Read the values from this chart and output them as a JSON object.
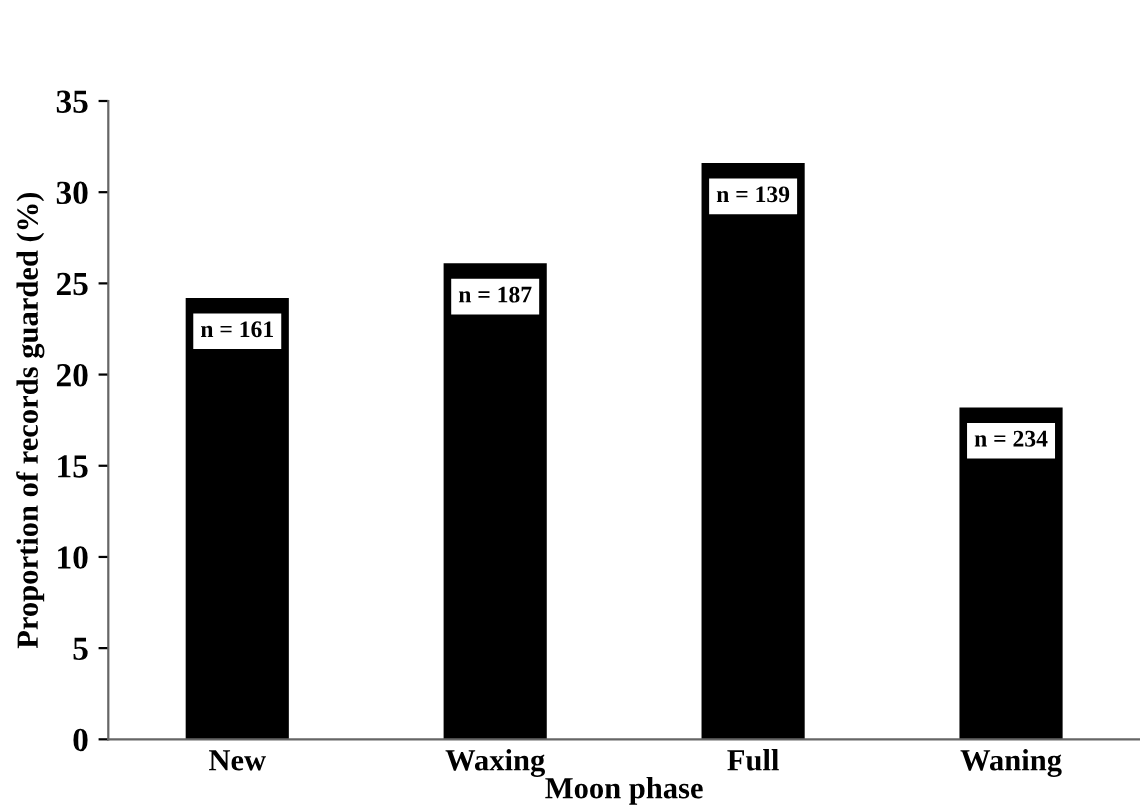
{
  "chart_data": {
    "type": "bar",
    "xlabel": "Moon phase",
    "ylabel": "Proportion of records guarded (%)",
    "categories": [
      "New",
      "Waxing",
      "Full",
      "Waning"
    ],
    "values": [
      24.2,
      26.1,
      31.6,
      18.2
    ],
    "color": "#000000",
    "ylim": [
      0,
      35
    ],
    "yticks": [
      0,
      5,
      10,
      15,
      20,
      25,
      30,
      35
    ],
    "grid": false,
    "legend": false,
    "annotations": [
      {
        "text": "n = 161",
        "x": "New",
        "y": 24.2
      },
      {
        "text": "n = 187",
        "x": "Waxing",
        "y": 26.1
      },
      {
        "text": "n = 139",
        "x": "Full",
        "y": 31.6
      },
      {
        "text": "n = 234",
        "x": "Waning",
        "y": 18.2
      }
    ]
  }
}
